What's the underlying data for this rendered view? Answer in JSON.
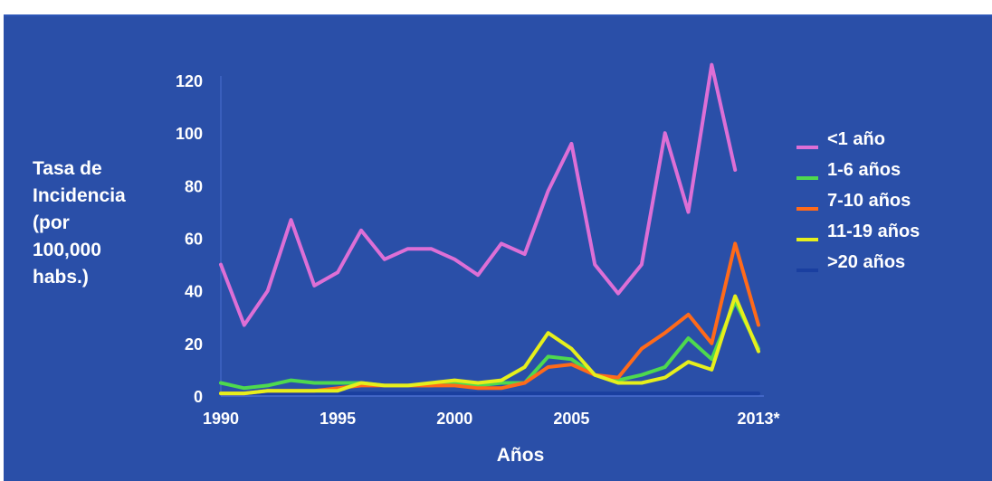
{
  "chart_data": {
    "type": "line",
    "title": "",
    "xlabel": "Años",
    "ylabel": [
      "Tasa de",
      "Incidencia",
      "(por",
      "100,000",
      "habs.)"
    ],
    "ylim": [
      0,
      130
    ],
    "yticks": [
      0,
      20,
      40,
      60,
      80,
      100,
      120
    ],
    "xlim": [
      1990,
      2013
    ],
    "xticks": [
      {
        "x": 1990,
        "label": "1990"
      },
      {
        "x": 1995,
        "label": "1995"
      },
      {
        "x": 2000,
        "label": "2000"
      },
      {
        "x": 2005,
        "label": "2005"
      },
      {
        "x": 2013,
        "label": "2013*"
      }
    ],
    "grid": false,
    "legend_position": "right",
    "x": [
      1990,
      1991,
      1992,
      1993,
      1994,
      1995,
      1996,
      1997,
      1998,
      1999,
      2000,
      2001,
      2002,
      2003,
      2004,
      2005,
      2006,
      2007,
      2008,
      2009,
      2010,
      2011,
      2012,
      2013
    ],
    "series": [
      {
        "name": "<1 año",
        "color": "#dd6fd6",
        "values": [
          50,
          27,
          40,
          67,
          42,
          47,
          63,
          52,
          56,
          56,
          52,
          46,
          58,
          54,
          78,
          96,
          50,
          39,
          50,
          100,
          70,
          126,
          86,
          null
        ]
      },
      {
        "name": "1-6 años",
        "color": "#4ed94e",
        "values": [
          5,
          3,
          4,
          6,
          5,
          5,
          5,
          4,
          4,
          4,
          5,
          4,
          5,
          5,
          15,
          14,
          8,
          6,
          8,
          11,
          22,
          14,
          36,
          18
        ]
      },
      {
        "name": "7-10 años",
        "color": "#ff6a1a",
        "values": [
          1,
          1,
          2,
          2,
          2,
          3,
          4,
          4,
          4,
          4,
          4,
          3,
          3,
          5,
          11,
          12,
          8,
          7,
          18,
          24,
          31,
          20,
          58,
          27
        ]
      },
      {
        "name": "11-19 años",
        "color": "#e6ef1c",
        "values": [
          1,
          1,
          2,
          2,
          2,
          2,
          5,
          4,
          4,
          5,
          6,
          5,
          6,
          11,
          24,
          18,
          8,
          5,
          5,
          7,
          13,
          10,
          38,
          17
        ]
      },
      {
        "name": ">20 años",
        "color": "#1a3fa0",
        "values": [
          1,
          1,
          1,
          1,
          1,
          1,
          1,
          1,
          1,
          1,
          1,
          1,
          1,
          1,
          1,
          1,
          1,
          1,
          1,
          1,
          1,
          1,
          1,
          1
        ]
      }
    ]
  }
}
